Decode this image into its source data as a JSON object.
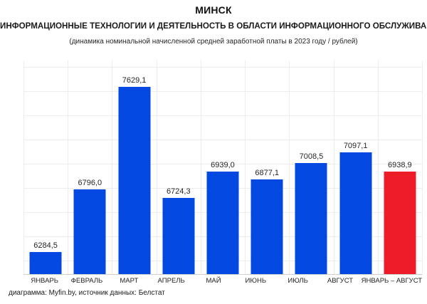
{
  "header": {
    "title": "МИНСК",
    "subtitle": "ИНФОРМАЦИОННЫЕ ТЕХНОЛОГИИ И ДЕЯТЕЛЬНОСТЬ В ОБЛАСТИ ИНФОРМАЦИОННОГО ОБСЛУЖИВАНИЯ",
    "note": "(динамика номинальной начисленной средней заработной платы в 2023 году / рублей)"
  },
  "chart_data": {
    "type": "bar",
    "title": "МИНСК",
    "subtitle": "ИНФОРМАЦИОННЫЕ ТЕХНОЛОГИИ И ДЕЯТЕЛЬНОСТЬ В ОБЛАСТИ ИНФОРМАЦИОННОГО ОБСЛУЖИВАНИЯ",
    "units_note": "(динамика номинальной начисленной средней заработной платы в 2023 году / рублей)",
    "categories": [
      "ЯНВАРЬ",
      "ФЕВРАЛЬ",
      "МАРТ",
      "АПРЕЛЬ",
      "МАЙ",
      "ИЮНЬ",
      "ИЮЛЬ",
      "АВГУСТ",
      "ЯНВАРЬ – АВГУСТ"
    ],
    "values": [
      6284.5,
      6796.0,
      7629.1,
      6724.3,
      6939.0,
      6877.1,
      7008.5,
      7097.1,
      6938.9
    ],
    "value_labels": [
      "6284,5",
      "6796,0",
      "7629,1",
      "6724,3",
      "6939,0",
      "6877,1",
      "7008,5",
      "7097,1",
      "6938,9"
    ],
    "xlabel": "",
    "ylabel": "",
    "ylim": [
      6105,
      7844
    ],
    "grid": true,
    "legend": false,
    "colors": {
      "bar_default": "#0448E2",
      "bar_highlight": "#EC1C28",
      "highlight_index": 8,
      "gridline": "#ededed",
      "axis_line": "#cfcfcf"
    }
  },
  "footer": {
    "credit": "диаграмма: Myfin.by, источник данных: Белстат"
  }
}
